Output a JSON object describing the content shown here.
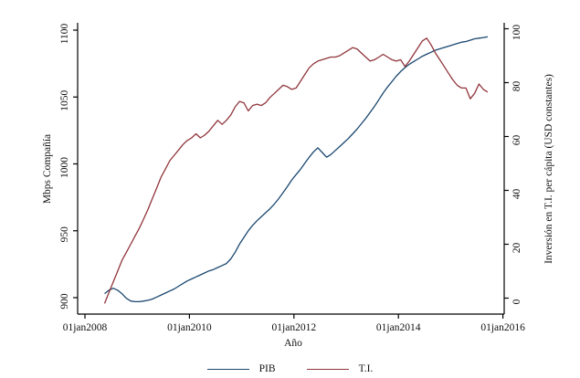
{
  "chart_data": {
    "type": "line",
    "title": "",
    "xlabel": "Año",
    "x_ticks": [
      "01jan2008",
      "01jan2010",
      "01jan2012",
      "01jan2014",
      "01jan2016"
    ],
    "x_range_years": [
      2007.85,
      2016.15
    ],
    "grid": false,
    "legend_position": "bottom-center",
    "start_month": "2008-05",
    "end_month": "2015-09",
    "y_left": {
      "label": "Mbps Compañía",
      "ticks": [
        900,
        950,
        1000,
        1050,
        1100
      ],
      "range": [
        890,
        1105
      ]
    },
    "y_right": {
      "label": "Inversión en T.I. per cápita (USD constantes)",
      "ticks": [
        0,
        20,
        40,
        60,
        80,
        100
      ],
      "range": [
        -6,
        102
      ]
    },
    "series": [
      {
        "name": "PIB",
        "axis": "left",
        "color": "#1a476f",
        "values": [
          903,
          905.5,
          907,
          905.5,
          903,
          899.5,
          897.5,
          897,
          897,
          897.5,
          898,
          899,
          900.5,
          902,
          903.5,
          905,
          906.5,
          908.5,
          910.5,
          912.5,
          914,
          915.5,
          917,
          918.5,
          920,
          921,
          922.5,
          924,
          925.5,
          929,
          934,
          940,
          945,
          950,
          954,
          957.5,
          960.5,
          963.5,
          966.5,
          970,
          974,
          978.5,
          983,
          988,
          992,
          996,
          1000.5,
          1005,
          1009,
          1012,
          1008.5,
          1005,
          1007,
          1010,
          1013,
          1016,
          1019,
          1022.5,
          1026,
          1030,
          1034,
          1038.5,
          1043,
          1048,
          1053,
          1057.5,
          1061.5,
          1065.5,
          1069,
          1072,
          1074.5,
          1076.5,
          1078.5,
          1080.5,
          1082,
          1083.5,
          1085,
          1086,
          1087,
          1088,
          1089,
          1090,
          1091,
          1091.5,
          1092.5,
          1093.5,
          1094,
          1094.5,
          1095
        ]
      },
      {
        "name": "T.I.",
        "axis": "right",
        "color": "#90353b",
        "values": [
          -2,
          2,
          6,
          10,
          14,
          17,
          20,
          23,
          26,
          29.5,
          33,
          37,
          41,
          45,
          48,
          51,
          53,
          55,
          57,
          58.5,
          59.5,
          61,
          59.5,
          60.5,
          62,
          64,
          66,
          64.5,
          66,
          68,
          71,
          73,
          72.5,
          69.5,
          71.5,
          72,
          71.5,
          72.5,
          74.5,
          76,
          77.5,
          79,
          78.5,
          77.5,
          78,
          80.5,
          83,
          85.5,
          87,
          88,
          88.5,
          89,
          89.5,
          89.5,
          90,
          91,
          92,
          93,
          92.5,
          91,
          89.5,
          88,
          88.5,
          89.5,
          90.5,
          89.5,
          88.5,
          88,
          88.5,
          86,
          88,
          90.5,
          93,
          95.5,
          96.5,
          94,
          91,
          88.5,
          86,
          83.5,
          81,
          79,
          78,
          78,
          74,
          76,
          79.5,
          77.5,
          76.5
        ]
      }
    ],
    "axis_color": "#000000",
    "text_color": "#111111"
  }
}
